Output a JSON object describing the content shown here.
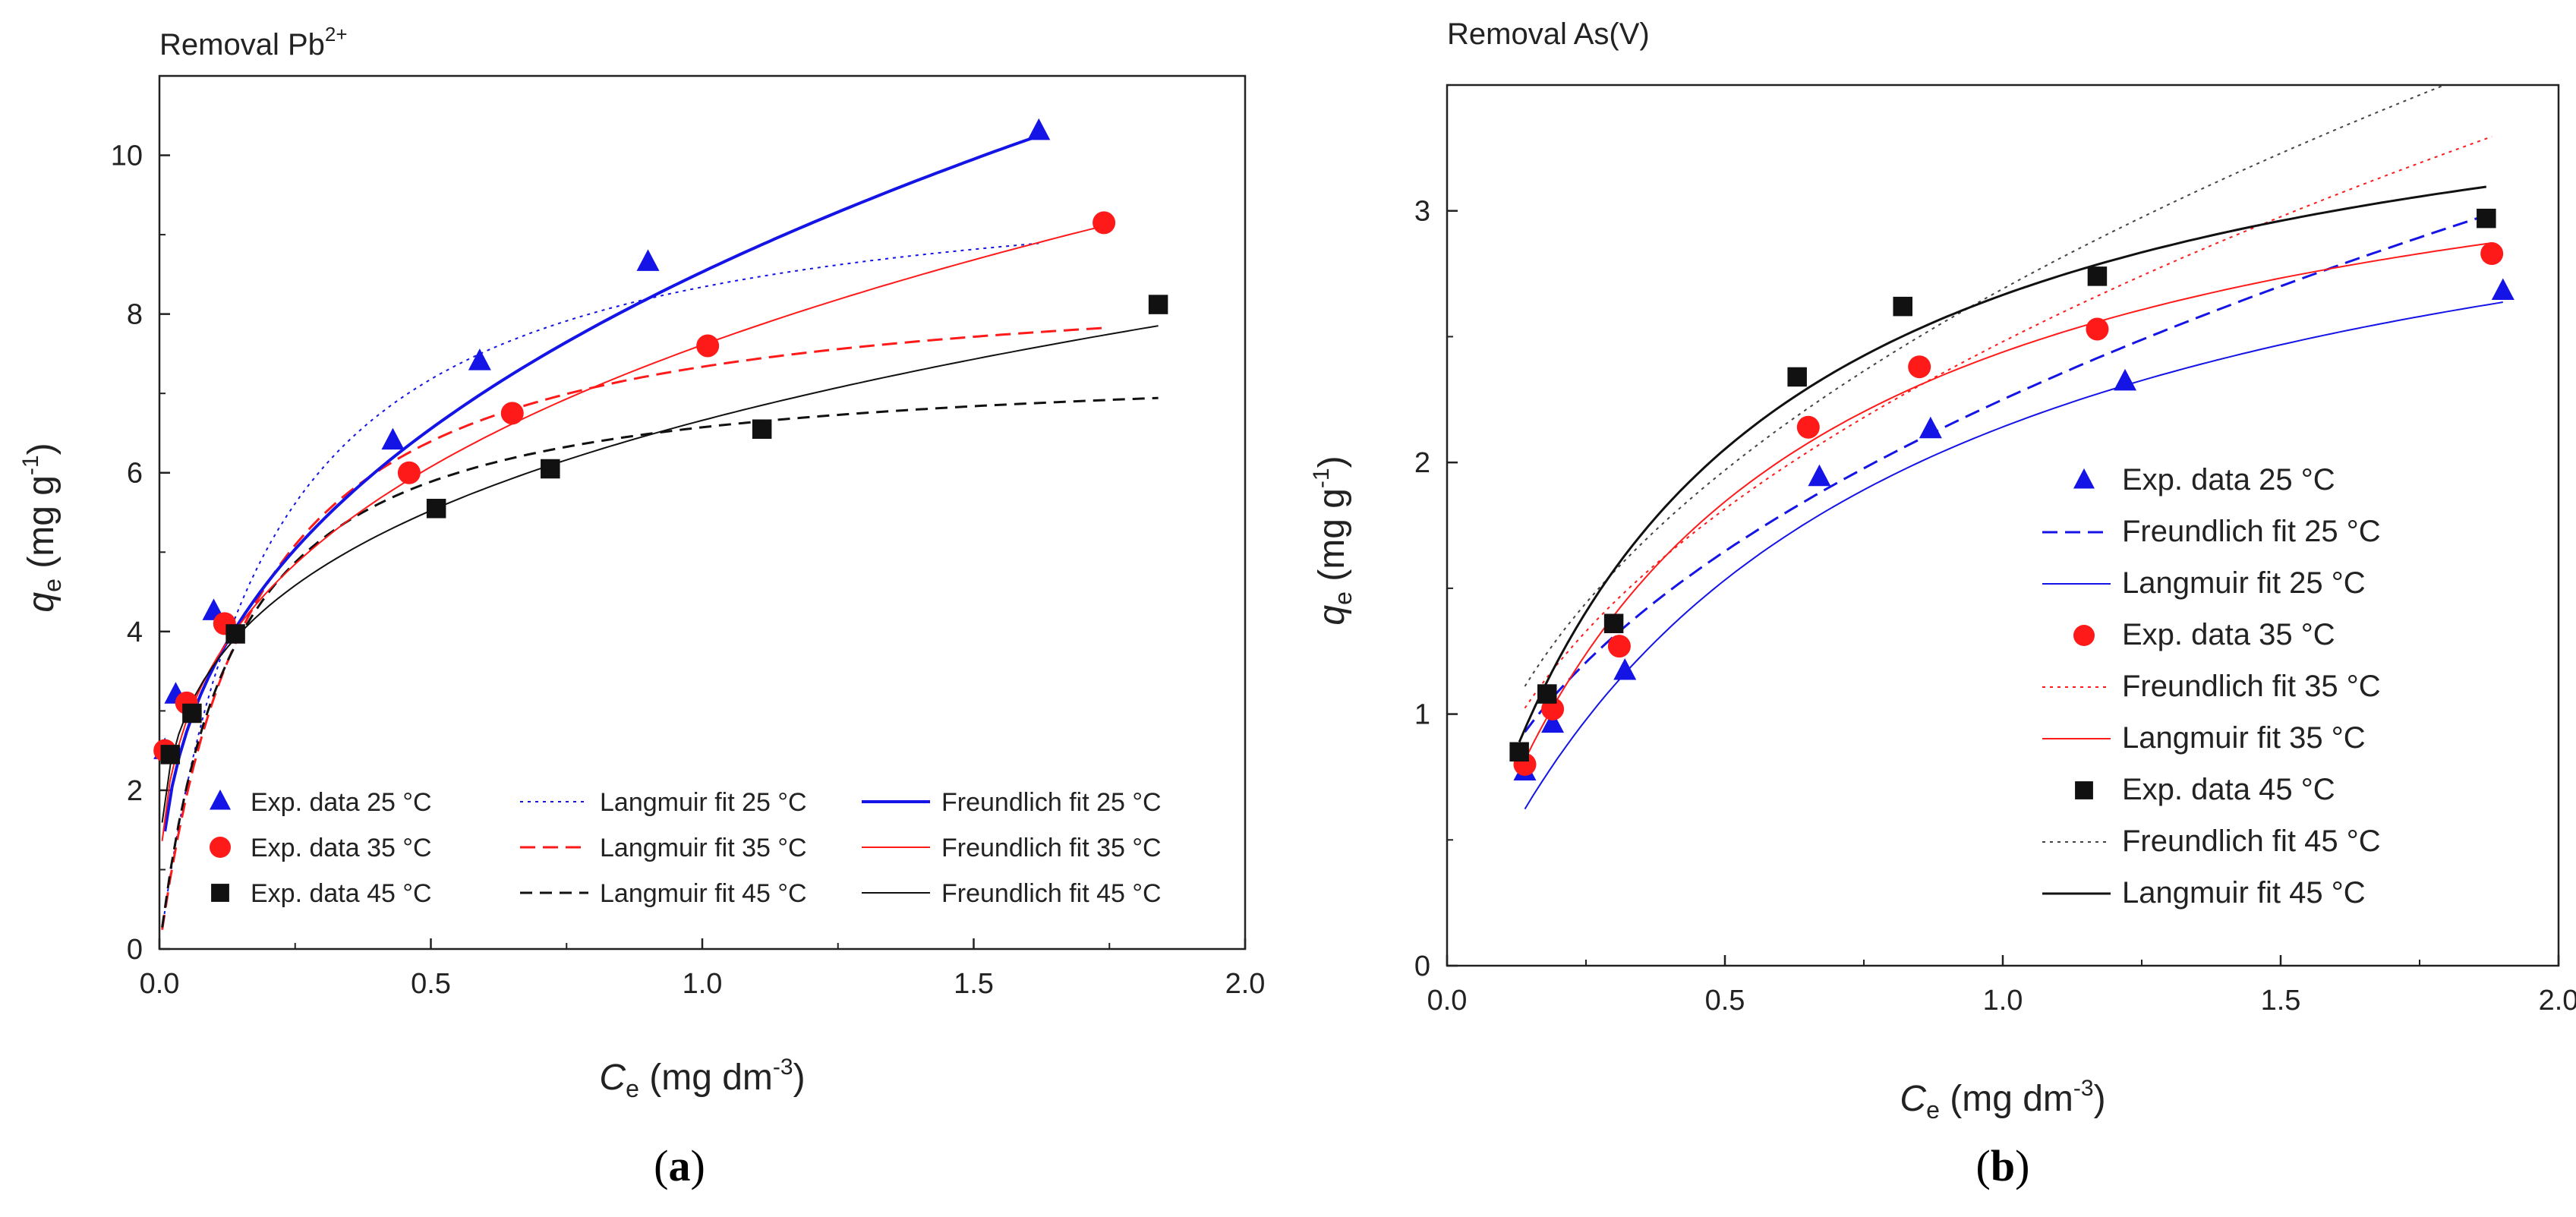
{
  "chart_data": [
    {
      "id": "a",
      "type": "scatter",
      "title": "Removal Pb",
      "title_superscript": "2+",
      "caption_letter": "a",
      "xlabel_main": "C",
      "xlabel_sub": "e",
      "xlabel_unit": " (mg dm",
      "xlabel_sup": "-3",
      "xlabel_close": ")",
      "ylabel_main": "q",
      "ylabel_sub": "e",
      "ylabel_unit": " (mg g",
      "ylabel_sup": "-1",
      "ylabel_close": ")",
      "xlim": [
        0,
        2.0
      ],
      "ylim": [
        0,
        11
      ],
      "xticks": [
        0.0,
        0.5,
        1.0,
        1.5,
        2.0
      ],
      "xtick_labels": [
        "0.0",
        "0.5",
        "1.0",
        "1.5",
        "2.0"
      ],
      "yticks": [
        0,
        2,
        4,
        6,
        8,
        10
      ],
      "ytick_labels": [
        "0",
        "2",
        "4",
        "6",
        "8",
        "10"
      ],
      "legend_position": "bottom",
      "series": [
        {
          "name": "Exp. data 25",
          "unit": "°C",
          "kind": "points",
          "marker": "triangle",
          "color": "#1414e6",
          "x": [
            0.01,
            0.03,
            0.1,
            0.43,
            0.59,
            0.9,
            1.62
          ],
          "y": [
            2.5,
            3.2,
            4.25,
            6.4,
            7.4,
            8.65,
            10.3
          ]
        },
        {
          "name": "Exp. data 35",
          "unit": "°C",
          "kind": "points",
          "marker": "circle",
          "color": "#ff1a1a",
          "x": [
            0.01,
            0.05,
            0.12,
            0.46,
            0.65,
            1.01,
            1.74
          ],
          "y": [
            2.5,
            3.1,
            4.1,
            6.0,
            6.75,
            7.6,
            9.15
          ]
        },
        {
          "name": "Exp. data 45",
          "unit": "°C",
          "kind": "points",
          "marker": "square",
          "color": "#111111",
          "x": [
            0.02,
            0.06,
            0.14,
            0.51,
            0.72,
            1.11,
            1.84
          ],
          "y": [
            2.45,
            2.97,
            3.97,
            5.55,
            6.05,
            6.55,
            8.12
          ]
        },
        {
          "name": "Langmuir fit 25",
          "unit": "°C",
          "kind": "line",
          "model": "langmuir",
          "qmax": 9.95,
          "K": 5.18,
          "x_range": [
            0.005,
            1.62
          ],
          "color": "#1414e6",
          "dash": "4,6",
          "width": 2
        },
        {
          "name": "Langmuir fit 35",
          "unit": "°C",
          "kind": "line",
          "model": "langmuir",
          "qmax": 8.6,
          "K": 5.8,
          "x_range": [
            0.005,
            1.74
          ],
          "color": "#ff1a1a",
          "dash": "20,10",
          "width": 3
        },
        {
          "name": "Langmuir fit 45",
          "unit": "°C",
          "kind": "line",
          "model": "langmuir",
          "qmax": 7.44,
          "K": 7.58,
          "x_range": [
            0.005,
            1.84
          ],
          "color": "#111111",
          "dash": "16,10",
          "width": 3
        },
        {
          "name": "Freundlich fit 25",
          "unit": "°C",
          "kind": "line",
          "model": "freundlich",
          "KF": 8.53,
          "n_inv": 0.38,
          "x_range": [
            0.01,
            1.62
          ],
          "color": "#1414e6",
          "dash": "",
          "width": 4
        },
        {
          "name": "Freundlich fit 35",
          "unit": "°C",
          "kind": "line",
          "model": "freundlich",
          "KF": 7.61,
          "n_inv": 0.325,
          "x_range": [
            0.005,
            1.74
          ],
          "color": "#ff1a1a",
          "dash": "",
          "width": 2
        },
        {
          "name": "Freundlich fit 45",
          "unit": "°C",
          "kind": "line",
          "model": "freundlich",
          "KF": 6.66,
          "n_inv": 0.27,
          "x_range": [
            0.005,
            1.84
          ],
          "color": "#111111",
          "dash": "",
          "width": 2
        }
      ],
      "legend": [
        {
          "series": "Exp. data 25",
          "label": "Exp. data 25"
        },
        {
          "series": "Langmuir fit 25",
          "label": "Langmuir fit 25"
        },
        {
          "series": "Freundlich fit 25",
          "label": "Freundlich fit 25"
        },
        {
          "series": "Exp. data 35",
          "label": "Exp. data 35"
        },
        {
          "series": "Langmuir fit 35",
          "label": "Langmuir fit 35"
        },
        {
          "series": "Freundlich fit 35",
          "label": "Freundlich fit 35"
        },
        {
          "series": "Exp. data 45",
          "label": "Exp. data 45"
        },
        {
          "series": "Langmuir fit 45",
          "label": "Langmuir fit 45"
        },
        {
          "series": "Freundlich fit 45",
          "label": "Freundlich fit 45"
        }
      ]
    },
    {
      "id": "b",
      "type": "scatter",
      "title": "Removal As(V)",
      "title_superscript": "",
      "caption_letter": "b",
      "xlabel_main": "C",
      "xlabel_sub": "e",
      "xlabel_unit": " (mg dm",
      "xlabel_sup": "-3",
      "xlabel_close": ")",
      "ylabel_main": "q",
      "ylabel_sub": "e",
      "ylabel_unit": " (mg g",
      "ylabel_sup": "-1",
      "ylabel_close": ")",
      "xlim": [
        0,
        2.0
      ],
      "ylim": [
        0,
        3.5
      ],
      "xticks": [
        0.0,
        0.5,
        1.0,
        1.5,
        2.0
      ],
      "xtick_labels": [
        "0.0",
        "0.5",
        "1.0",
        "1.5",
        "2.0"
      ],
      "yticks": [
        0,
        1,
        2,
        3
      ],
      "ytick_labels": [
        "0",
        "1",
        "2",
        "3"
      ],
      "legend_position": "right",
      "series": [
        {
          "name": "Exp. data 25",
          "unit": "°C",
          "kind": "points",
          "marker": "triangle",
          "color": "#1414e6",
          "x": [
            0.14,
            0.19,
            0.32,
            0.67,
            0.87,
            1.22,
            1.9
          ],
          "y": [
            0.77,
            0.96,
            1.17,
            1.94,
            2.13,
            2.32,
            2.68
          ]
        },
        {
          "name": "Freundlich fit 25",
          "unit": "°C",
          "kind": "line",
          "model": "freundlich",
          "KF": 2.25,
          "n_inv": 0.45,
          "x_range": [
            0.14,
            1.88
          ],
          "color": "#1414e6",
          "dash": "20,10",
          "width": 3
        },
        {
          "name": "Langmuir fit 25",
          "unit": "°C",
          "kind": "line",
          "model": "langmuir",
          "qmax": 3.55,
          "K": 1.52,
          "x_range": [
            0.14,
            1.9
          ],
          "color": "#1414e6",
          "dash": "",
          "width": 2
        },
        {
          "name": "Exp. data 35",
          "unit": "°C",
          "kind": "points",
          "marker": "circle",
          "color": "#ff1a1a",
          "x": [
            0.14,
            0.19,
            0.31,
            0.65,
            0.85,
            1.17,
            1.88
          ],
          "y": [
            0.8,
            1.02,
            1.27,
            2.14,
            2.38,
            2.53,
            2.83
          ]
        },
        {
          "name": "Freundlich fit 35",
          "unit": "°C",
          "kind": "line",
          "model": "freundlich",
          "KF": 2.48,
          "n_inv": 0.45,
          "x_range": [
            0.14,
            1.88
          ],
          "color": "#ff1a1a",
          "dash": "4,6",
          "width": 2
        },
        {
          "name": "Langmuir fit 35",
          "unit": "°C",
          "kind": "line",
          "model": "langmuir",
          "qmax": 3.6,
          "K": 2.1,
          "x_range": [
            0.14,
            1.88
          ],
          "color": "#ff1a1a",
          "dash": "",
          "width": 2
        },
        {
          "name": "Exp. data 45",
          "unit": "°C",
          "kind": "points",
          "marker": "square",
          "color": "#111111",
          "x": [
            0.13,
            0.18,
            0.3,
            0.63,
            0.82,
            1.17,
            1.87
          ],
          "y": [
            0.85,
            1.08,
            1.36,
            2.34,
            2.62,
            2.74,
            2.97
          ]
        },
        {
          "name": "Freundlich fit 45",
          "unit": "°C",
          "kind": "line",
          "model": "freundlich",
          "KF": 2.69,
          "n_inv": 0.45,
          "x_range": [
            0.14,
            1.87
          ],
          "color": "#444444",
          "dash": "4,6",
          "width": 2
        },
        {
          "name": "Langmuir fit 45",
          "unit": "°C",
          "kind": "line",
          "model": "langmuir",
          "qmax": 3.8,
          "K": 2.35,
          "x_range": [
            0.13,
            1.87
          ],
          "color": "#111111",
          "dash": "",
          "width": 3
        }
      ],
      "legend": [
        {
          "series": "Exp. data 25",
          "label": "Exp. data 25"
        },
        {
          "series": "Freundlich fit 25",
          "label": "Freundlich fit 25"
        },
        {
          "series": "Langmuir fit 25",
          "label": "Langmuir fit 25"
        },
        {
          "series": "Exp. data 35",
          "label": "Exp. data 35"
        },
        {
          "series": "Freundlich fit 35",
          "label": "Freundlich fit 35"
        },
        {
          "series": "Langmuir fit 35",
          "label": "Langmuir fit 35"
        },
        {
          "series": "Exp. data 45",
          "label": "Exp. data 45"
        },
        {
          "series": "Freundlich fit 45",
          "label": "Freundlich fit 45"
        },
        {
          "series": "Langmuir fit 45",
          "label": "Langmuir fit 45"
        }
      ]
    }
  ]
}
